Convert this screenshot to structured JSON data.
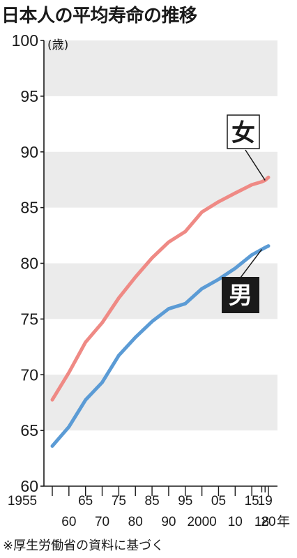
{
  "title": "日本人の平均寿命の推移",
  "source_note": "※厚生労働省の資料に基づく",
  "chart_data": {
    "type": "line",
    "title": "日本人の平均寿命の推移",
    "y_unit": "(歳)",
    "x_unit": "年",
    "ylim": [
      60,
      100
    ],
    "y_ticks": [
      "60",
      "65",
      "70",
      "75",
      "80",
      "85",
      "90",
      "95",
      "100"
    ],
    "grid": "alternating gray bands every 5 years of age",
    "x": [
      1955,
      1960,
      1965,
      1970,
      1975,
      1980,
      1985,
      1990,
      1995,
      2000,
      2005,
      2010,
      2015,
      2018,
      2019,
      2020
    ],
    "x_tick_labels_upper": [
      {
        "x": 1955,
        "label": "1955"
      },
      {
        "x": 1965,
        "label": "65"
      },
      {
        "x": 1975,
        "label": "75"
      },
      {
        "x": 1985,
        "label": "85"
      },
      {
        "x": 1995,
        "label": "95"
      },
      {
        "x": 2005,
        "label": "05"
      },
      {
        "x": 2015,
        "label": "15"
      },
      {
        "x": 2019,
        "label": "19"
      }
    ],
    "x_tick_labels_lower": [
      {
        "x": 1960,
        "label": "60"
      },
      {
        "x": 1970,
        "label": "70"
      },
      {
        "x": 1980,
        "label": "80"
      },
      {
        "x": 1990,
        "label": "90"
      },
      {
        "x": 2000,
        "label": "2000"
      },
      {
        "x": 2010,
        "label": "10"
      },
      {
        "x": 2018,
        "label": "18"
      },
      {
        "x": 2020,
        "label": "20"
      }
    ],
    "series": [
      {
        "name": "女",
        "color": "#ef8a85",
        "values": [
          67.75,
          70.19,
          72.92,
          74.66,
          76.89,
          78.76,
          80.48,
          81.9,
          82.85,
          84.6,
          85.52,
          86.3,
          87.05,
          87.32,
          87.45,
          87.71
        ]
      },
      {
        "name": "男",
        "color": "#5b9bd5",
        "values": [
          63.6,
          65.32,
          67.74,
          69.31,
          71.73,
          73.35,
          74.78,
          75.92,
          76.38,
          77.72,
          78.56,
          79.55,
          80.75,
          81.25,
          81.41,
          81.56
        ]
      }
    ]
  }
}
